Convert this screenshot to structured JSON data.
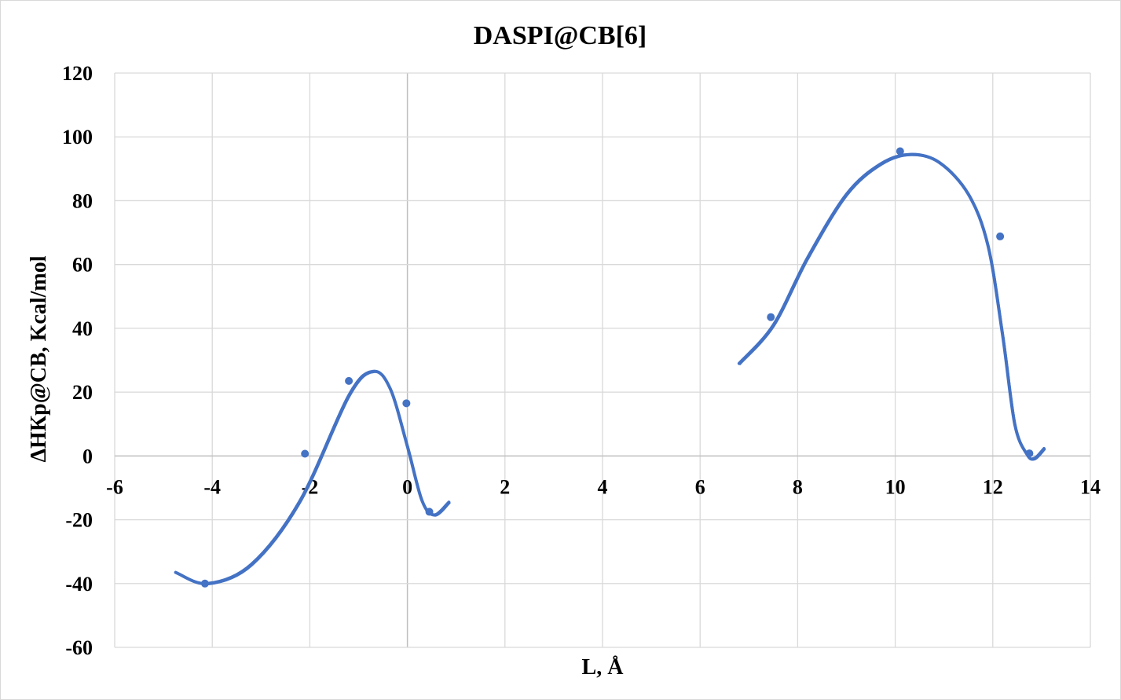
{
  "chart_data": {
    "type": "scatter",
    "title": "DASPI@CB[6]",
    "xlabel": "L, Å",
    "ylabel": "ΔHКр@CB,  Kcal/mol",
    "xlim": [
      -6,
      14
    ],
    "ylim": [
      -60,
      120
    ],
    "x_ticks": [
      -6,
      -4,
      -2,
      0,
      2,
      4,
      6,
      8,
      10,
      12,
      14
    ],
    "y_ticks": [
      -60,
      -40,
      -20,
      0,
      20,
      40,
      60,
      80,
      100,
      120
    ],
    "x_tick_labels": [
      "-6",
      "-4",
      "-2",
      "0",
      "2",
      "4",
      "6",
      "8",
      "10",
      "12",
      "14"
    ],
    "y_tick_labels": [
      "-60",
      "-40",
      "-20",
      "0",
      "20",
      "40",
      "60",
      "80",
      "100",
      "120"
    ],
    "grid": true,
    "legend": "none",
    "color": "#4472C4",
    "series": [
      {
        "points": [
          {
            "x": -4.15,
            "y": -40
          },
          {
            "x": -2.1,
            "y": 0.7
          },
          {
            "x": -1.2,
            "y": 23.5
          },
          {
            "x": -0.02,
            "y": 16.5
          },
          {
            "x": 0.45,
            "y": -17.5
          }
        ],
        "trendline": [
          {
            "x": -4.75,
            "y": -36.5
          },
          {
            "x": -4.1,
            "y": -40
          },
          {
            "x": -3.2,
            "y": -34
          },
          {
            "x": -2.2,
            "y": -14
          },
          {
            "x": -1.2,
            "y": 19
          },
          {
            "x": -0.7,
            "y": 26.5
          },
          {
            "x": -0.35,
            "y": 21
          },
          {
            "x": 0.0,
            "y": 3
          },
          {
            "x": 0.3,
            "y": -14
          },
          {
            "x": 0.55,
            "y": -18.5
          },
          {
            "x": 0.85,
            "y": -14.5
          }
        ]
      },
      {
        "points": [
          {
            "x": 7.45,
            "y": 43.5
          },
          {
            "x": 10.1,
            "y": 95.5
          },
          {
            "x": 12.15,
            "y": 68.8
          },
          {
            "x": 12.75,
            "y": 0.8
          }
        ],
        "trendline": [
          {
            "x": 6.8,
            "y": 29
          },
          {
            "x": 7.5,
            "y": 41
          },
          {
            "x": 8.2,
            "y": 62
          },
          {
            "x": 9.0,
            "y": 82
          },
          {
            "x": 9.7,
            "y": 91.5
          },
          {
            "x": 10.3,
            "y": 94.5
          },
          {
            "x": 10.9,
            "y": 92
          },
          {
            "x": 11.5,
            "y": 82
          },
          {
            "x": 11.9,
            "y": 66
          },
          {
            "x": 12.2,
            "y": 38
          },
          {
            "x": 12.45,
            "y": 10
          },
          {
            "x": 12.7,
            "y": 0.5
          },
          {
            "x": 12.85,
            "y": -0.8
          },
          {
            "x": 13.05,
            "y": 2.3
          }
        ]
      }
    ]
  }
}
